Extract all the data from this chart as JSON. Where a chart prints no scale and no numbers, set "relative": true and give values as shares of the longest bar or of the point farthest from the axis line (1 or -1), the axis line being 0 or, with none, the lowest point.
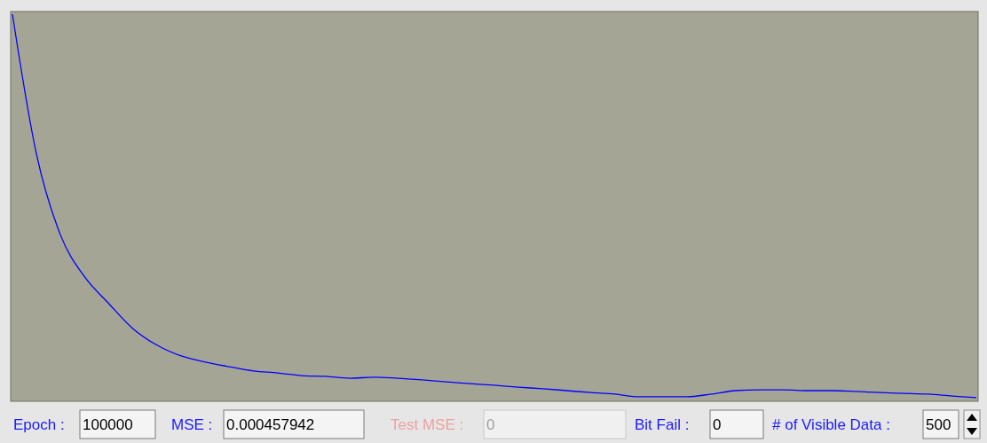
{
  "chart_data": {
    "type": "line",
    "relative": true,
    "categories": [
      null,
      null,
      null,
      null,
      null,
      null,
      null,
      null,
      null,
      null,
      null,
      null,
      null,
      null,
      null,
      null,
      null,
      null,
      null,
      null,
      null,
      null,
      null,
      null,
      null,
      null,
      null,
      null,
      null,
      null,
      null,
      null,
      null,
      null,
      null,
      null,
      null,
      null,
      null,
      null,
      null
    ],
    "series": [
      {
        "color": "#0000ff",
        "values": [
          1,
          0.636,
          0.426,
          0.318,
          0.249,
          0.184,
          0.141,
          0.113,
          0.097,
          0.085,
          0.074,
          0.069,
          0.062,
          0.06,
          0.055,
          0.058,
          0.055,
          0.051,
          0.046,
          0.041,
          0.037,
          0.032,
          0.028,
          0.023,
          0.018,
          0.014,
          0.007,
          0.007,
          0.007,
          0.014,
          0.023,
          0.025,
          0.025,
          0.023,
          0.023,
          0.021,
          0.018,
          0.016,
          0.014,
          0.009,
          0.005
        ]
      }
    ],
    "annotations": [
      "Epoch :",
      "100000",
      "MSE :",
      "0.000457942",
      "Test MSE :",
      "0",
      "Bit Fail  :",
      "0",
      "# of Visible Data :",
      "500"
    ],
    "line_style": "solid"
  }
}
